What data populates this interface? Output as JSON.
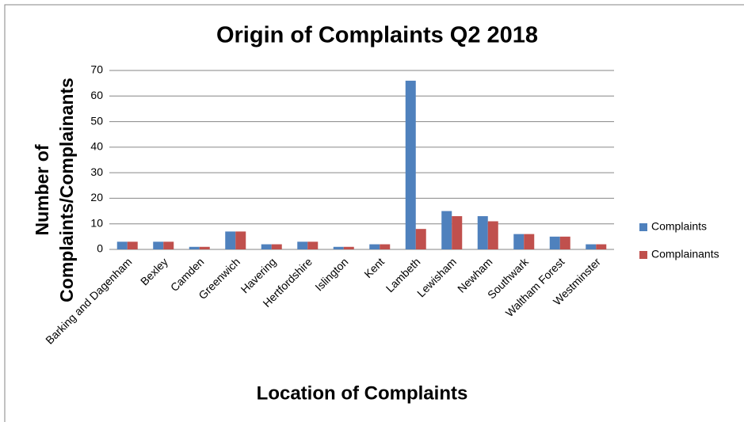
{
  "chart_data": {
    "type": "bar",
    "title": "Origin of Complaints Q2 2018",
    "xlabel": "Location of Complaints",
    "ylabel": [
      "Number of",
      "Complaints/Complainants"
    ],
    "categories": [
      "Barking and Dagenham",
      "Bexley",
      "Camden",
      "Greenwich",
      "Havering",
      "Hertfordshire",
      "Islington",
      "Kent",
      "Lambeth",
      "Lewisham",
      "Newham",
      "Southwark",
      "Waltham Forest",
      "Westminster"
    ],
    "series": [
      {
        "name": "Complaints",
        "color": "#4f81bd",
        "values": [
          3,
          3,
          1,
          7,
          2,
          3,
          1,
          2,
          66,
          15,
          13,
          6,
          5,
          2
        ]
      },
      {
        "name": "Complainants",
        "color": "#c0504d",
        "values": [
          3,
          3,
          1,
          7,
          2,
          3,
          1,
          2,
          8,
          13,
          11,
          6,
          5,
          2
        ]
      }
    ],
    "ylim": [
      0,
      70
    ],
    "yticks": [
      0,
      10,
      20,
      30,
      40,
      50,
      60,
      70
    ],
    "grid": true,
    "legend": "right"
  }
}
